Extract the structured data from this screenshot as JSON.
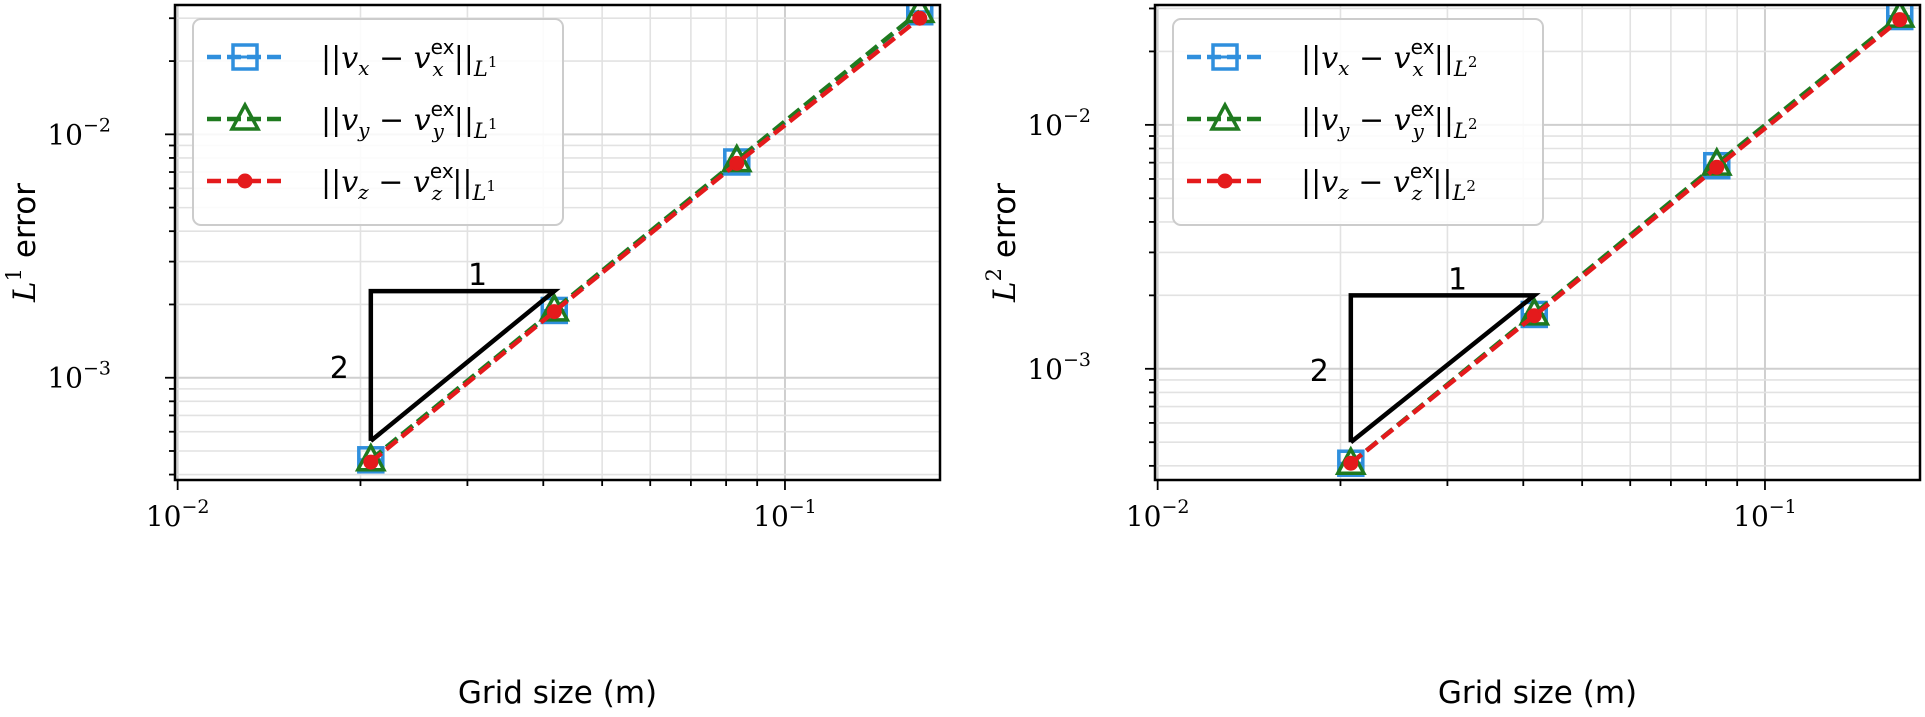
{
  "chart_data": [
    {
      "type": "line",
      "xscale": "log",
      "yscale": "log",
      "xlabel": "Grid size (m)",
      "ylabel": {
        "base": "L",
        "sup": "1",
        "suffix": " error"
      },
      "xlim": [
        0.0099,
        0.18
      ],
      "ylim": [
        0.00038,
        0.034
      ],
      "xticks": [
        {
          "value": 0.01,
          "mantissa": "10",
          "exp": "−2"
        },
        {
          "value": 0.1,
          "mantissa": "10",
          "exp": "−1"
        }
      ],
      "yticks": [
        {
          "value": 0.01,
          "mantissa": "10",
          "exp": "−2"
        },
        {
          "value": 0.001,
          "mantissa": "10",
          "exp": "−3"
        }
      ],
      "grid": true,
      "legend_position": "top-left",
      "series": [
        {
          "name": "||v_x − v_x^ex||_{L^1}",
          "legend": {
            "comp": "x",
            "norm": "1"
          },
          "color": "#2f8fdd",
          "marker": "square",
          "x": [
            0.0208,
            0.0417,
            0.0833,
            0.1667
          ],
          "y": [
            0.00046,
            0.00189,
            0.0077,
            0.0319
          ]
        },
        {
          "name": "||v_y − v_y^ex||_{L^1}",
          "legend": {
            "comp": "y",
            "norm": "1"
          },
          "color": "#1f7a1f",
          "marker": "triangle",
          "x": [
            0.0208,
            0.0417,
            0.0833,
            0.1667
          ],
          "y": [
            0.00046,
            0.0019,
            0.0078,
            0.032
          ]
        },
        {
          "name": "||v_z − v_z^ex||_{L^1}",
          "legend": {
            "comp": "z",
            "norm": "1"
          },
          "color": "#e41a1c",
          "marker": "circle",
          "x": [
            0.0208,
            0.0417,
            0.0833,
            0.1667
          ],
          "y": [
            0.00045,
            0.00187,
            0.0076,
            0.03
          ]
        }
      ],
      "slope_triangle": {
        "run_label": "1",
        "rise_label": "2",
        "x0": 0.0208,
        "x1": 0.0417,
        "y_low": 0.00055,
        "y_high": 0.00227
      }
    },
    {
      "type": "line",
      "xscale": "log",
      "yscale": "log",
      "xlabel": "Grid size (m)",
      "ylabel": {
        "base": "L",
        "sup": "2",
        "suffix": " error"
      },
      "xlim": [
        0.0099,
        0.18
      ],
      "ylim": [
        0.00035,
        0.031
      ],
      "xticks": [
        {
          "value": 0.01,
          "mantissa": "10",
          "exp": "−2"
        },
        {
          "value": 0.1,
          "mantissa": "10",
          "exp": "−1"
        }
      ],
      "yticks": [
        {
          "value": 0.01,
          "mantissa": "10",
          "exp": "−2"
        },
        {
          "value": 0.001,
          "mantissa": "10",
          "exp": "−3"
        }
      ],
      "grid": true,
      "legend_position": "top-left",
      "series": [
        {
          "name": "||v_x − v_x^ex||_{L^2}",
          "legend": {
            "comp": "x",
            "norm": "2"
          },
          "color": "#2f8fdd",
          "marker": "square",
          "x": [
            0.0208,
            0.0417,
            0.0833,
            0.1667
          ],
          "y": [
            0.00041,
            0.00167,
            0.0068,
            0.0278
          ]
        },
        {
          "name": "||v_y − v_y^ex||_{L^2}",
          "legend": {
            "comp": "y",
            "norm": "2"
          },
          "color": "#1f7a1f",
          "marker": "triangle",
          "x": [
            0.0208,
            0.0417,
            0.0833,
            0.1667
          ],
          "y": [
            0.00041,
            0.00168,
            0.0069,
            0.0279
          ]
        },
        {
          "name": "||v_z − v_z^ex||_{L^2}",
          "legend": {
            "comp": "z",
            "norm": "2"
          },
          "color": "#e41a1c",
          "marker": "circle",
          "x": [
            0.0208,
            0.0417,
            0.0833,
            0.1667
          ],
          "y": [
            0.00041,
            0.00165,
            0.0067,
            0.027
          ]
        }
      ],
      "slope_triangle": {
        "run_label": "1",
        "rise_label": "2",
        "x0": 0.0208,
        "x1": 0.0417,
        "y_low": 0.0005,
        "y_high": 0.002
      }
    }
  ]
}
